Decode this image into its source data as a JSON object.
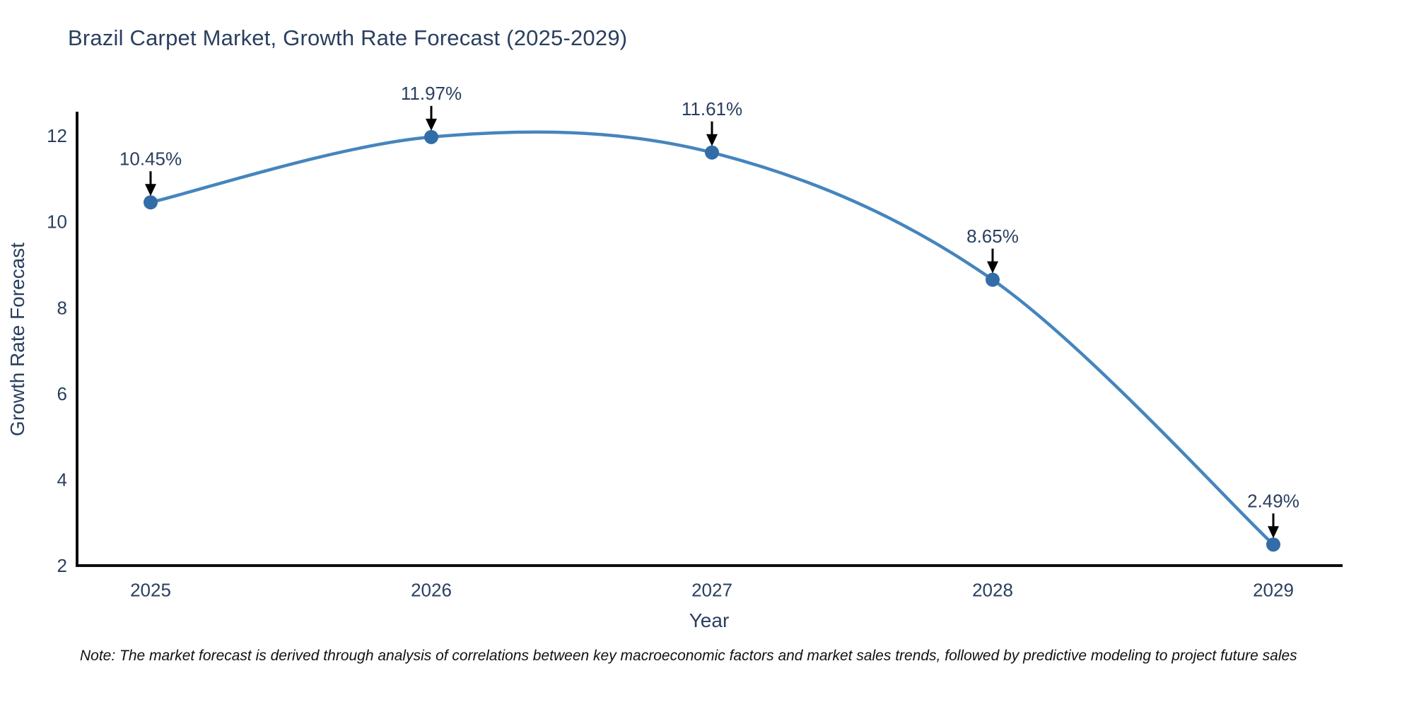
{
  "title": "Brazil Carpet Market, Growth Rate Forecast (2025-2029)",
  "note": "Note: The market forecast is derived through analysis of correlations between key macroeconomic factors and market sales trends, followed by predictive modeling to project future sales",
  "chart_data": {
    "type": "line",
    "title": "Brazil Carpet Market, Growth Rate Forecast (2025-2029)",
    "xlabel": "Year",
    "ylabel": "Growth Rate Forecast",
    "x": [
      2025,
      2026,
      2027,
      2028,
      2029
    ],
    "values": [
      10.45,
      11.97,
      11.61,
      8.65,
      2.49
    ],
    "point_labels": [
      "10.45%",
      "11.97%",
      "11.61%",
      "8.65%",
      "2.49%"
    ],
    "xticks": [
      "2025",
      "2026",
      "2027",
      "2028",
      "2029"
    ],
    "yticks": [
      2,
      4,
      6,
      8,
      10,
      12
    ],
    "ylim": [
      2,
      12.53
    ],
    "xlim": [
      2024.73,
      2029.25
    ],
    "line_shape": "spline",
    "grid": false,
    "legend": "none",
    "colors": {
      "line": "#4585bd",
      "marker": "#326da8",
      "axis_line": "#0d0d0d",
      "tick_text": "#2a3f5f",
      "title_text": "#2a3f5f",
      "annotation_text": "#2a3f5f",
      "annotation_arrow": "#000000",
      "background": "#ffffff"
    }
  }
}
